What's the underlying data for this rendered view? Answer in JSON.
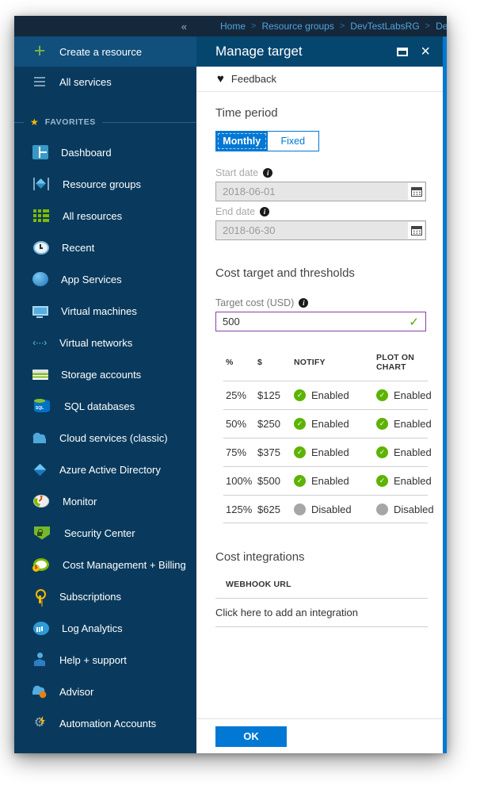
{
  "breadcrumb": {
    "separator": ">",
    "items": [
      "Home",
      "Resource groups",
      "DevTestLabsRG",
      "DemoLab"
    ]
  },
  "sidebar": {
    "collapse_icon": "«",
    "create_item": {
      "label": "Create a resource",
      "icon": "plus-icon"
    },
    "all_services_item": {
      "label": "All services",
      "icon": "all-services-icon"
    },
    "favorites_label": "FAVORITES",
    "favorites_star": "★",
    "items": [
      {
        "label": "Dashboard",
        "icon": "dashboard-icon"
      },
      {
        "label": "Resource groups",
        "icon": "resource-groups-icon"
      },
      {
        "label": "All resources",
        "icon": "all-resources-icon"
      },
      {
        "label": "Recent",
        "icon": "recent-clock-icon"
      },
      {
        "label": "App Services",
        "icon": "app-services-icon"
      },
      {
        "label": "Virtual machines",
        "icon": "virtual-machines-icon"
      },
      {
        "label": "Virtual networks",
        "icon": "virtual-networks-icon"
      },
      {
        "label": "Storage accounts",
        "icon": "storage-accounts-icon"
      },
      {
        "label": "SQL databases",
        "icon": "sql-databases-icon"
      },
      {
        "label": "Cloud services (classic)",
        "icon": "cloud-services-icon"
      },
      {
        "label": "Azure Active Directory",
        "icon": "azure-active-directory-icon"
      },
      {
        "label": "Monitor",
        "icon": "monitor-gauge-icon"
      },
      {
        "label": "Security Center",
        "icon": "security-shield-icon"
      },
      {
        "label": "Cost Management + Billing",
        "icon": "cost-management-icon"
      },
      {
        "label": "Subscriptions",
        "icon": "subscriptions-key-icon"
      },
      {
        "label": "Log Analytics",
        "icon": "log-analytics-icon"
      },
      {
        "label": "Help + support",
        "icon": "help-support-icon"
      },
      {
        "label": "Advisor",
        "icon": "advisor-cloud-icon"
      },
      {
        "label": "Automation Accounts",
        "icon": "automation-gear-icon"
      }
    ]
  },
  "panel": {
    "title": "Manage target",
    "icons": {
      "close": "×",
      "heart": "♥",
      "valid_check": "✓",
      "info": "i"
    },
    "feedback_label": "Feedback",
    "time_period": {
      "heading": "Time period",
      "toggle": {
        "monthly_label": "Monthly",
        "fixed_label": "Fixed",
        "selected": "Monthly"
      },
      "start_date": {
        "label": "Start date",
        "value": "2018-06-01"
      },
      "end_date": {
        "label": "End date",
        "value": "2018-06-30"
      }
    },
    "cost_target": {
      "heading": "Cost target and thresholds",
      "target_cost": {
        "label": "Target cost (USD)",
        "value": "500"
      }
    },
    "thresholds": {
      "headers": [
        "%",
        "$",
        "NOTIFY",
        "PLOT ON CHART"
      ],
      "rows": [
        {
          "percent": "25%",
          "amount": "$125",
          "notify": "Enabled",
          "plot": "Enabled"
        },
        {
          "percent": "50%",
          "amount": "$250",
          "notify": "Enabled",
          "plot": "Enabled"
        },
        {
          "percent": "75%",
          "amount": "$375",
          "notify": "Enabled",
          "plot": "Enabled"
        },
        {
          "percent": "100%",
          "amount": "$500",
          "notify": "Enabled",
          "plot": "Enabled"
        },
        {
          "percent": "125%",
          "amount": "$625",
          "notify": "Disabled",
          "plot": "Disabled"
        }
      ]
    },
    "integrations": {
      "heading": "Cost integrations",
      "column_header": "WEBHOOK URL",
      "add_label": "Click here to add an integration"
    },
    "ok_label": "OK"
  },
  "colors": {
    "accent_blue": "#0078D4",
    "blade_header_blue": "#05466F",
    "sidebar_navy": "#093A5D",
    "topbar_navy": "#15283B",
    "sidebar_selected": "#114F7C",
    "enabled_green": "#5DB300",
    "disabled_gray": "#A6A6A6",
    "valid_purple": "#8B41A5",
    "breadcrumb_link_blue": "#4FA3E0",
    "favorites_star_yellow": "#FFB900"
  }
}
